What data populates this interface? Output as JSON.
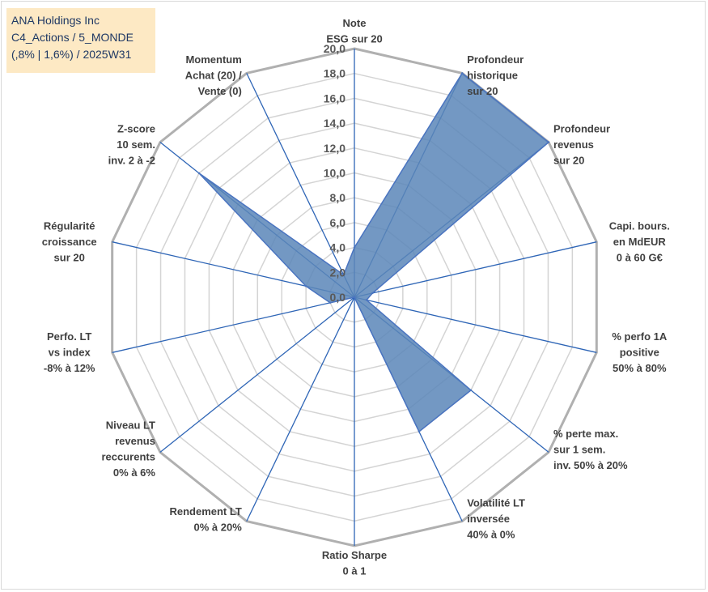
{
  "header": {
    "line1": "ANA Holdings Inc",
    "line2": "C4_Actions / 5_MONDE",
    "line3": "(,8% | 1,6%) / 2025W31"
  },
  "colors": {
    "fill": "#5b86b8",
    "stroke": "#4a74c0",
    "web": "#c0c0c0",
    "spoke": "#2e65b6",
    "title_bg": "#fde9c4",
    "title_text": "#1f3864"
  },
  "chart_data": {
    "type": "radar",
    "rlim": [
      0,
      20
    ],
    "grid": true,
    "tick_labels": [
      "0,0",
      "2,0",
      "4,0",
      "6,0",
      "8,0",
      "10,0",
      "12,0",
      "14,0",
      "16,0",
      "18,0",
      "20,0"
    ],
    "axes": [
      {
        "label": [
          "Note",
          "ESG sur 20"
        ],
        "value": 4.0
      },
      {
        "label": [
          "Profondeur",
          "historique",
          "sur 20"
        ],
        "value": 20.0
      },
      {
        "label": [
          "Profondeur",
          "revenus",
          "sur 20"
        ],
        "value": 20.0
      },
      {
        "label": [
          "Capi. bours.",
          "en MdEUR",
          "0 à 60 G€"
        ],
        "value": 1.5
      },
      {
        "label": [
          "% perfo 1A",
          "positive",
          "50% à 80%"
        ],
        "value": 1.0
      },
      {
        "label": [
          "% perte max.",
          "sur 1 sem.",
          "inv. 50% à 20%"
        ],
        "value": 12.0
      },
      {
        "label": [
          "Volatilité LT",
          "inversée",
          "40% à 0%"
        ],
        "value": 12.0
      },
      {
        "label": [
          "Ratio Sharpe",
          "0 à 1"
        ],
        "value": 0.0
      },
      {
        "label": [
          "Rendement LT",
          "0% à 20%"
        ],
        "value": 0.0
      },
      {
        "label": [
          "Niveau LT",
          "revenus",
          "reccurents",
          "0% à 6%"
        ],
        "value": 0.0
      },
      {
        "label": [
          "Perfo. LT",
          "vs index",
          "-8% à 12%"
        ],
        "value": 2.0
      },
      {
        "label": [
          "Régularité",
          "croissance",
          "sur 20"
        ],
        "value": 4.0
      },
      {
        "label": [
          "Z-score",
          "10 sem.",
          "inv. 2 à -2"
        ],
        "value": 16.0
      },
      {
        "label": [
          "Momentum",
          "Achat (20) /",
          "Vente (0)"
        ],
        "value": 2.0
      }
    ]
  }
}
